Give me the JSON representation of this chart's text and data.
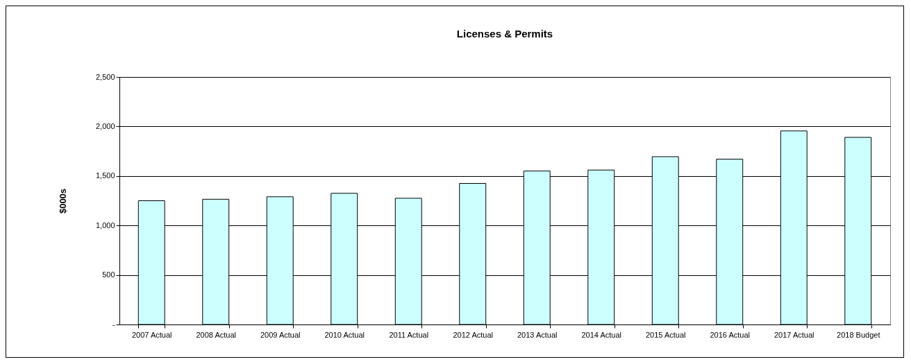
{
  "chart_data": {
    "type": "bar",
    "title": "Licenses & Permits",
    "ylabel": "$000s",
    "categories": [
      "2007 Actual",
      "2008 Actual",
      "2009 Actual",
      "2010 Actual",
      "2011 Actual",
      "2012 Actual",
      "2013 Actual",
      "2014 Actual",
      "2015 Actual",
      "2016 Actual",
      "2017 Actual",
      "2018 Budget"
    ],
    "values": [
      1250,
      1265,
      1290,
      1325,
      1275,
      1425,
      1550,
      1560,
      1695,
      1670,
      1955,
      1890
    ],
    "color": "#ccffff",
    "ylim": [
      0,
      2500
    ],
    "yticks": [
      {
        "value": 0,
        "label": "-"
      },
      500,
      {
        "value": 1000,
        "label": "1,000"
      },
      {
        "value": 1500,
        "label": "1,500"
      },
      {
        "value": 2000,
        "label": "2,000"
      },
      {
        "value": 2500,
        "label": "2,500"
      }
    ],
    "grid": "y"
  }
}
